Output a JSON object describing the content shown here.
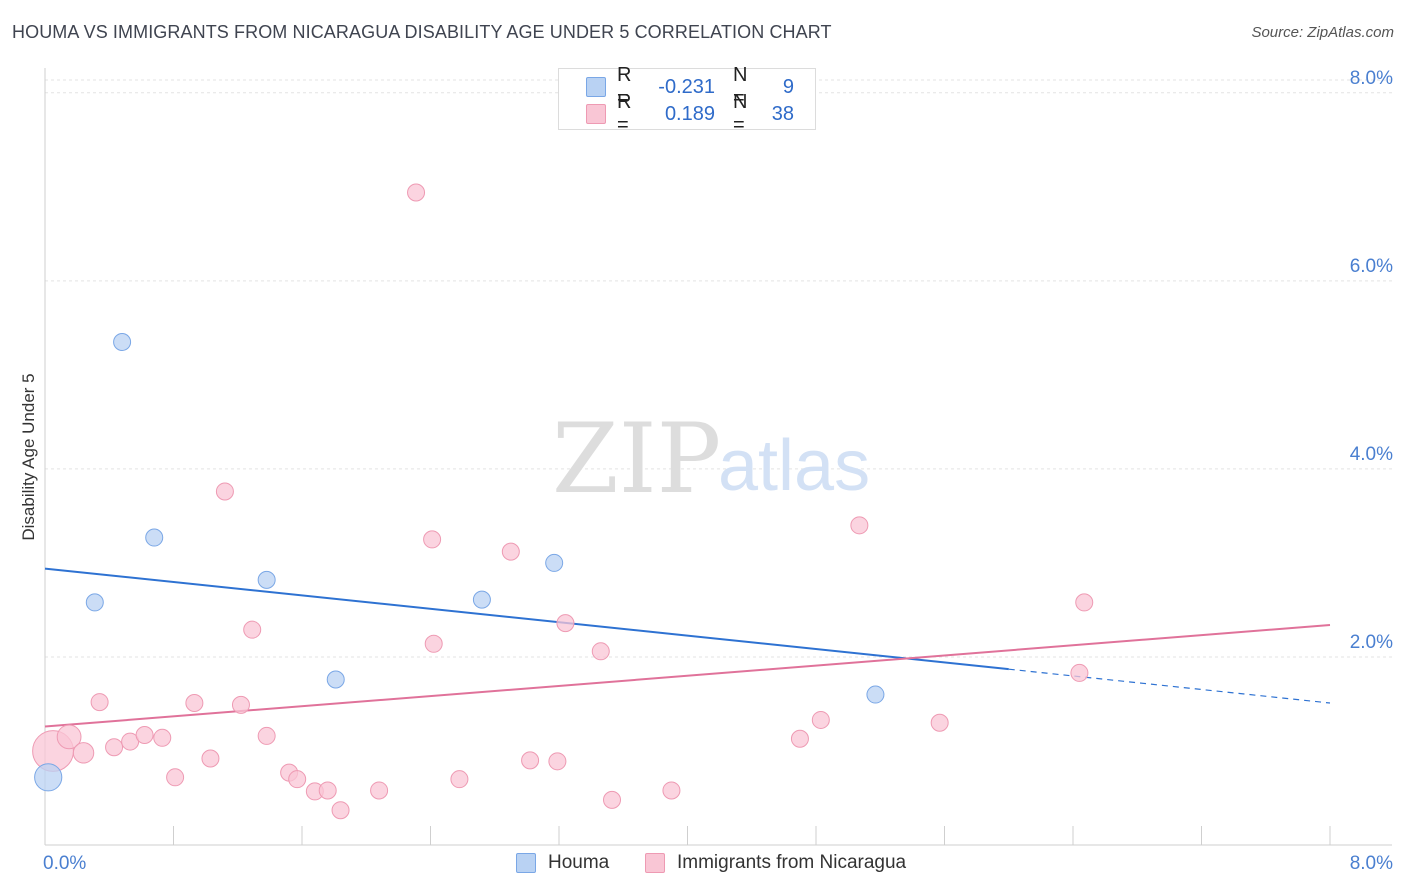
{
  "title": "HOUMA VS IMMIGRANTS FROM NICARAGUA DISABILITY AGE UNDER 5 CORRELATION CHART",
  "source": "Source: ZipAtlas.com",
  "watermark": {
    "zip": "ZIP",
    "atlas": "atlas"
  },
  "legend_top": {
    "rows": [
      {
        "r_label": "R =",
        "r_value": "-0.231",
        "n_label": "N =",
        "n_value": "9"
      },
      {
        "r_label": "R =",
        "r_value": "0.189",
        "n_label": "N =",
        "n_value": "38"
      }
    ]
  },
  "legend_bottom": [
    "Houma",
    "Immigrants from Nicaragua"
  ],
  "colors": {
    "houma_fill": "#b9d2f3",
    "houma_stroke": "#7aa7e6",
    "houma_line": "#2e72d2",
    "nic_fill": "#f9c6d5",
    "nic_stroke": "#ee9ab3",
    "nic_line": "#e0729a",
    "grid": "#e3e3e3",
    "tick": "#4a7fd0"
  },
  "chart_data": {
    "type": "scatter",
    "title": "HOUMA VS IMMIGRANTS FROM NICARAGUA DISABILITY AGE UNDER 5 CORRELATION CHART",
    "xlabel": "",
    "ylabel": "Disability Age Under 5",
    "xlim": [
      0,
      8
    ],
    "ylim": [
      0,
      8.2
    ],
    "x_tick_labels": [
      "0.0%",
      "8.0%"
    ],
    "y_ticks": [
      2,
      4,
      6,
      8
    ],
    "y_tick_labels": [
      "2.0%",
      "4.0%",
      "6.0%",
      "8.0%"
    ],
    "legend_position": "bottom",
    "series": [
      {
        "name": "Houma",
        "r": -0.231,
        "n": 9,
        "points": [
          {
            "x": 0.02,
            "y": 0.72,
            "s": 1.6
          },
          {
            "x": 0.31,
            "y": 2.58,
            "s": 1
          },
          {
            "x": 0.48,
            "y": 5.35,
            "s": 1
          },
          {
            "x": 0.68,
            "y": 3.27,
            "s": 1
          },
          {
            "x": 1.38,
            "y": 2.82,
            "s": 1
          },
          {
            "x": 1.81,
            "y": 1.76,
            "s": 1
          },
          {
            "x": 2.72,
            "y": 2.61,
            "s": 1
          },
          {
            "x": 3.17,
            "y": 3.0,
            "s": 1
          },
          {
            "x": 5.17,
            "y": 1.6,
            "s": 1
          }
        ],
        "trend": {
          "x0": 0,
          "y0": 2.94,
          "x1": 6.0,
          "y1": 1.87,
          "dash_to_x": 8.0,
          "dash_to_y": 1.51
        }
      },
      {
        "name": "Immigrants from Nicaragua",
        "r": 0.189,
        "n": 38,
        "points": [
          {
            "x": 0.05,
            "y": 1.0,
            "s": 2.4
          },
          {
            "x": 0.15,
            "y": 1.15,
            "s": 1.4
          },
          {
            "x": 0.24,
            "y": 0.98,
            "s": 1.2
          },
          {
            "x": 0.34,
            "y": 1.52,
            "s": 1
          },
          {
            "x": 0.43,
            "y": 1.04,
            "s": 1
          },
          {
            "x": 0.53,
            "y": 1.1,
            "s": 1
          },
          {
            "x": 0.62,
            "y": 1.17,
            "s": 1
          },
          {
            "x": 0.73,
            "y": 1.14,
            "s": 1
          },
          {
            "x": 0.81,
            "y": 0.72,
            "s": 1
          },
          {
            "x": 0.93,
            "y": 1.51,
            "s": 1
          },
          {
            "x": 1.03,
            "y": 0.92,
            "s": 1
          },
          {
            "x": 1.12,
            "y": 3.76,
            "s": 1
          },
          {
            "x": 1.22,
            "y": 1.49,
            "s": 1
          },
          {
            "x": 1.29,
            "y": 2.29,
            "s": 1
          },
          {
            "x": 1.38,
            "y": 1.16,
            "s": 1
          },
          {
            "x": 1.52,
            "y": 0.77,
            "s": 1
          },
          {
            "x": 1.57,
            "y": 0.7,
            "s": 1
          },
          {
            "x": 1.68,
            "y": 0.57,
            "s": 1
          },
          {
            "x": 1.76,
            "y": 0.58,
            "s": 1
          },
          {
            "x": 1.84,
            "y": 0.37,
            "s": 1
          },
          {
            "x": 2.08,
            "y": 0.58,
            "s": 1
          },
          {
            "x": 2.31,
            "y": 6.94,
            "s": 1
          },
          {
            "x": 2.41,
            "y": 3.25,
            "s": 1
          },
          {
            "x": 2.42,
            "y": 2.14,
            "s": 1
          },
          {
            "x": 2.58,
            "y": 0.7,
            "s": 1
          },
          {
            "x": 2.9,
            "y": 3.12,
            "s": 1
          },
          {
            "x": 3.02,
            "y": 0.9,
            "s": 1
          },
          {
            "x": 3.19,
            "y": 0.89,
            "s": 1
          },
          {
            "x": 3.24,
            "y": 2.36,
            "s": 1
          },
          {
            "x": 3.46,
            "y": 2.06,
            "s": 1
          },
          {
            "x": 3.53,
            "y": 0.48,
            "s": 1
          },
          {
            "x": 3.9,
            "y": 0.58,
            "s": 1
          },
          {
            "x": 4.7,
            "y": 1.13,
            "s": 1
          },
          {
            "x": 4.83,
            "y": 1.33,
            "s": 1
          },
          {
            "x": 5.07,
            "y": 3.4,
            "s": 1
          },
          {
            "x": 5.57,
            "y": 1.3,
            "s": 1
          },
          {
            "x": 6.44,
            "y": 1.83,
            "s": 1
          },
          {
            "x": 6.47,
            "y": 2.58,
            "s": 1
          }
        ],
        "trend": {
          "x0": 0,
          "y0": 1.26,
          "x1": 8.0,
          "y1": 2.34
        }
      }
    ]
  }
}
